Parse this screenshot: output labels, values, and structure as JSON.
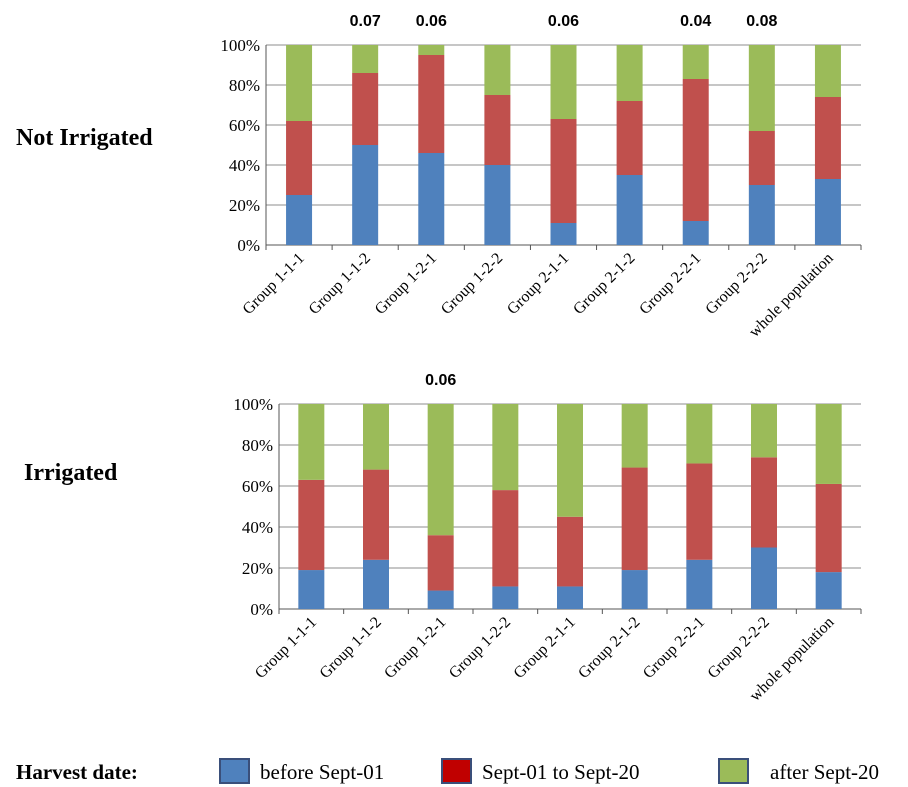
{
  "colors": {
    "before": "#4f81bd",
    "between": "#c0504d",
    "after": "#9bbb59",
    "legend_between": "#c00000",
    "grid": "#8c8c8c"
  },
  "legend": {
    "title": "Harvest date:",
    "items": [
      {
        "label": "before Sept-01",
        "color_key": "before"
      },
      {
        "label": "Sept-01 to Sept-20",
        "color_key": "legend_between"
      },
      {
        "label": "after Sept-20",
        "color_key": "after"
      }
    ]
  },
  "chart_data": [
    {
      "type": "bar",
      "stacked": true,
      "panel_label": "Not Irrigated",
      "categories": [
        "Group 1-1-1",
        "Group 1-1-2",
        "Group 1-2-1",
        "Group 1-2-2",
        "Group 2-1-1",
        "Group 2-1-2",
        "Group 2-2-1",
        "Group 2-2-2",
        "whole population"
      ],
      "yticks": [
        "0%",
        "20%",
        "40%",
        "60%",
        "80%",
        "100%"
      ],
      "ylim": [
        0,
        100
      ],
      "grid": true,
      "annotations": [
        "",
        "0.07",
        "0.06",
        "",
        "0.06",
        "",
        "0.04",
        "0.08",
        ""
      ],
      "series": [
        {
          "name": "before Sept-01",
          "color_key": "before",
          "values": [
            25,
            50,
            46,
            40,
            11,
            35,
            12,
            30,
            33
          ]
        },
        {
          "name": "Sept-01 to Sept-20",
          "color_key": "between",
          "values": [
            37,
            36,
            49,
            35,
            52,
            37,
            71,
            27,
            41
          ]
        },
        {
          "name": "after Sept-20",
          "color_key": "after",
          "values": [
            38,
            14,
            5,
            25,
            37,
            28,
            17,
            43,
            26
          ]
        }
      ]
    },
    {
      "type": "bar",
      "stacked": true,
      "panel_label": "Irrigated",
      "categories": [
        "Group 1-1-1",
        "Group 1-1-2",
        "Group 1-2-1",
        "Group 1-2-2",
        "Group 2-1-1",
        "Group 2-1-2",
        "Group 2-2-1",
        "Group 2-2-2",
        "whole population"
      ],
      "yticks": [
        "0%",
        "20%",
        "40%",
        "60%",
        "80%",
        "100%"
      ],
      "ylim": [
        0,
        100
      ],
      "grid": true,
      "annotations": [
        "",
        "",
        "0.06",
        "",
        "",
        "",
        "",
        "",
        ""
      ],
      "series": [
        {
          "name": "before Sept-01",
          "color_key": "before",
          "values": [
            19,
            24,
            9,
            11,
            11,
            19,
            24,
            30,
            18
          ]
        },
        {
          "name": "Sept-01 to Sept-20",
          "color_key": "between",
          "values": [
            44,
            44,
            27,
            47,
            34,
            50,
            47,
            44,
            43
          ]
        },
        {
          "name": "after Sept-20",
          "color_key": "after",
          "values": [
            37,
            32,
            64,
            42,
            55,
            31,
            29,
            26,
            39
          ]
        }
      ]
    }
  ]
}
